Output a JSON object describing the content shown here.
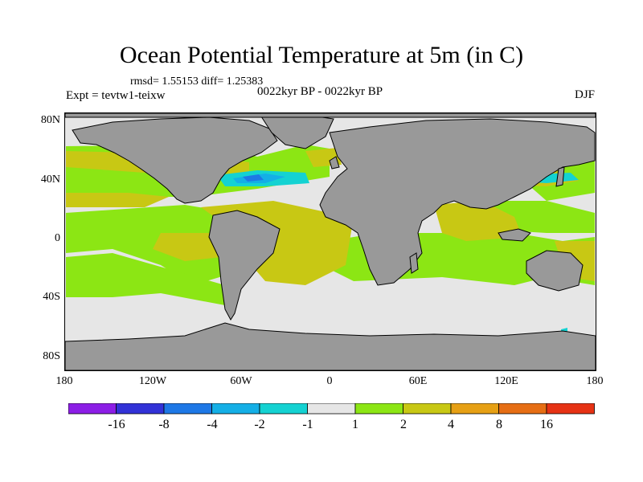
{
  "title": "Ocean Potential Temperature at 5m (in C)",
  "stats": "rmsd= 1.55153 diff= 1.25383",
  "experiment": "Expt = tevtw1-teixw",
  "period": "0022kyr BP - 0022kyr BP",
  "season": "DJF",
  "lat_labels": [
    "80N",
    "40N",
    "0",
    "40S",
    "80S"
  ],
  "lon_labels": [
    "180",
    "120W",
    "60W",
    "0",
    "60E",
    "120E",
    "180"
  ],
  "colors": {
    "land": "#999999",
    "ice": "#e6e6e6",
    "c_m16": "#8c1ee6",
    "c_m8": "#3232d7",
    "c_m4": "#1e78e6",
    "c_m2": "#14afe6",
    "c_m1": "#14d2d2",
    "c_0": "#e6e6e6",
    "c_1": "#8ce614",
    "c_2": "#c8c814",
    "c_4": "#e6a014",
    "c_8": "#e66e14",
    "c_16": "#e63214"
  },
  "colorbar": {
    "colors": [
      "#8c1ee6",
      "#3232d7",
      "#1e78e6",
      "#14afe6",
      "#14d2d2",
      "#e6e6e6",
      "#8ce614",
      "#c8c814",
      "#e6a014",
      "#e66e14",
      "#e63214"
    ],
    "labels": [
      "-16",
      "-8",
      "-4",
      "-2",
      "-1",
      "1",
      "2",
      "4",
      "8",
      "16"
    ]
  }
}
